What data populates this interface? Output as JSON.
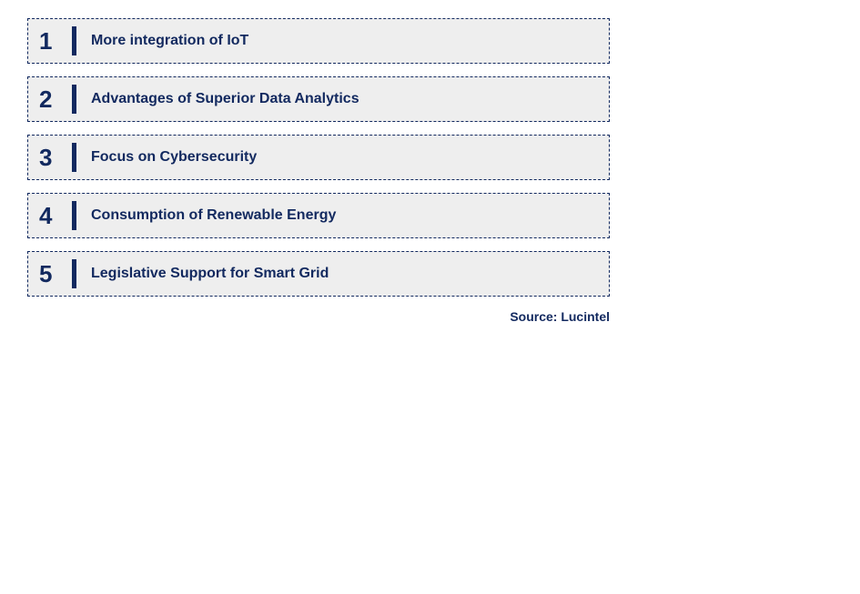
{
  "styling": {
    "item_background": "#eeeeee",
    "border_color": "#12295f",
    "text_color": "#12295f",
    "number_fontsize": 26,
    "label_fontsize": 16,
    "source_fontsize": 14,
    "divider_color": "#12295f",
    "container_width": 700,
    "item_height": 50,
    "item_gap": 14
  },
  "items": [
    {
      "number": "1",
      "label": "More integration of IoT"
    },
    {
      "number": "2",
      "label": "Advantages of Superior Data Analytics"
    },
    {
      "number": "3",
      "label": "Focus on Cybersecurity"
    },
    {
      "number": "4",
      "label": "Consumption of Renewable Energy"
    },
    {
      "number": "5",
      "label": "Legislative Support for Smart Grid"
    }
  ],
  "source": "Source: Lucintel"
}
